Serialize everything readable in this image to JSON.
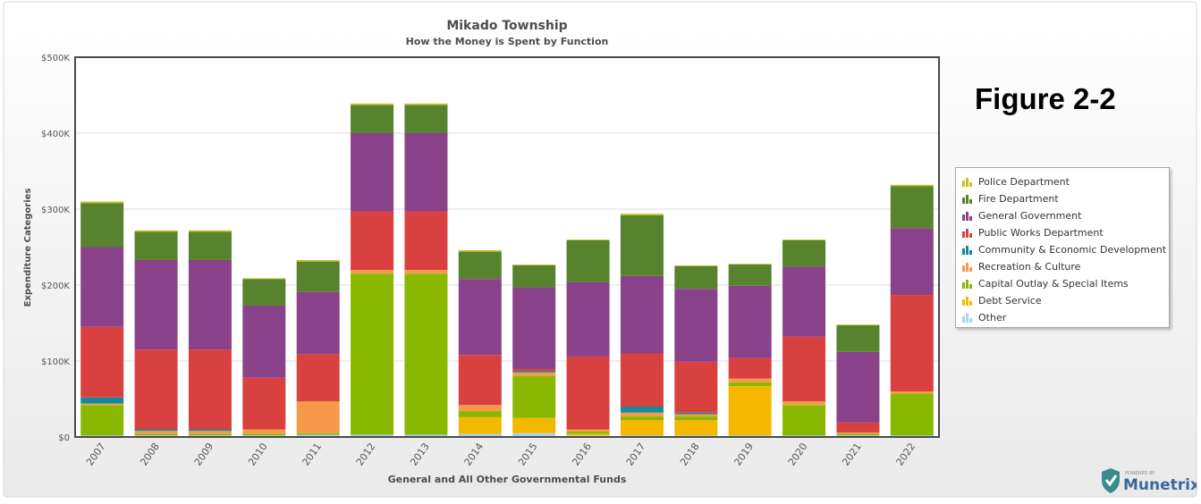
{
  "figure_label": "Figure 2-2",
  "logo": {
    "powered_by": "POWERED BY",
    "name": "Munetrix"
  },
  "chart_data": {
    "type": "bar",
    "stacked": true,
    "title": "Mikado Township",
    "subtitle": "How the Money is Spent by Function",
    "xlabel": "General and All Other Governmental Funds",
    "ylabel": "Expenditure Categories",
    "ylim": [
      0,
      500000
    ],
    "yticks": [
      {
        "value": 0,
        "label": "$0"
      },
      {
        "value": 100000,
        "label": "$100K"
      },
      {
        "value": 200000,
        "label": "$200K"
      },
      {
        "value": 300000,
        "label": "$300K"
      },
      {
        "value": 400000,
        "label": "$400K"
      },
      {
        "value": 500000,
        "label": "$500K"
      }
    ],
    "grid": true,
    "legend_position": "right",
    "categories": [
      "2007",
      "2008",
      "2009",
      "2010",
      "2011",
      "2012",
      "2013",
      "2014",
      "2015",
      "2016",
      "2017",
      "2018",
      "2019",
      "2020",
      "2021",
      "2022"
    ],
    "series": [
      {
        "name": "Other",
        "color": "#a6d3ef",
        "values": [
          2000,
          2000,
          2000,
          2000,
          3000,
          3000,
          3000,
          4000,
          5000,
          2000,
          2000,
          2000,
          2000,
          2000,
          2000,
          2000
        ]
      },
      {
        "name": "Debt Service",
        "color": "#f5b800",
        "values": [
          0,
          0,
          0,
          0,
          0,
          0,
          0,
          22000,
          20000,
          2000,
          20000,
          20000,
          65000,
          0,
          0,
          0
        ]
      },
      {
        "name": "Capital Outlay & Special Items",
        "color": "#8ab800",
        "values": [
          40000,
          2000,
          2000,
          2000,
          2000,
          212000,
          212000,
          8000,
          55000,
          3000,
          5000,
          5000,
          5000,
          40000,
          2000,
          55000
        ]
      },
      {
        "name": "Recreation & Culture",
        "color": "#f59a4a",
        "values": [
          2000,
          4000,
          4000,
          6000,
          42000,
          5000,
          5000,
          8000,
          5000,
          3000,
          5000,
          3000,
          5000,
          5000,
          2000,
          3000
        ]
      },
      {
        "name": "Community & Economic Development",
        "color": "#168a9a",
        "values": [
          8000,
          2000,
          2000,
          0,
          0,
          0,
          0,
          0,
          2000,
          0,
          8000,
          2000,
          0,
          0,
          0,
          0
        ]
      },
      {
        "name": "Public Works Department",
        "color": "#d94040",
        "values": [
          93000,
          105000,
          105000,
          68000,
          62000,
          77000,
          77000,
          66000,
          3000,
          96000,
          70000,
          67000,
          27000,
          85000,
          13000,
          127000
        ]
      },
      {
        "name": "General Government",
        "color": "#8a428a",
        "values": [
          105000,
          118000,
          118000,
          95000,
          82000,
          103000,
          103000,
          100000,
          107000,
          98000,
          102000,
          96000,
          95000,
          92000,
          93000,
          88000
        ]
      },
      {
        "name": "Fire Department",
        "color": "#57822e",
        "values": [
          58000,
          37000,
          37000,
          35000,
          40000,
          37000,
          37000,
          36000,
          29000,
          55000,
          80000,
          30000,
          28000,
          35000,
          35000,
          55000
        ]
      },
      {
        "name": "Police Department",
        "color": "#c8c420",
        "values": [
          2000,
          2000,
          2000,
          1000,
          2000,
          2000,
          2000,
          2000,
          1000,
          1000,
          2000,
          1000,
          1000,
          1000,
          1000,
          2000
        ]
      }
    ],
    "legend_order": [
      "Police Department",
      "Fire Department",
      "General Government",
      "Public Works Department",
      "Community & Economic Development",
      "Recreation & Culture",
      "Capital Outlay & Special Items",
      "Debt Service",
      "Other"
    ]
  }
}
